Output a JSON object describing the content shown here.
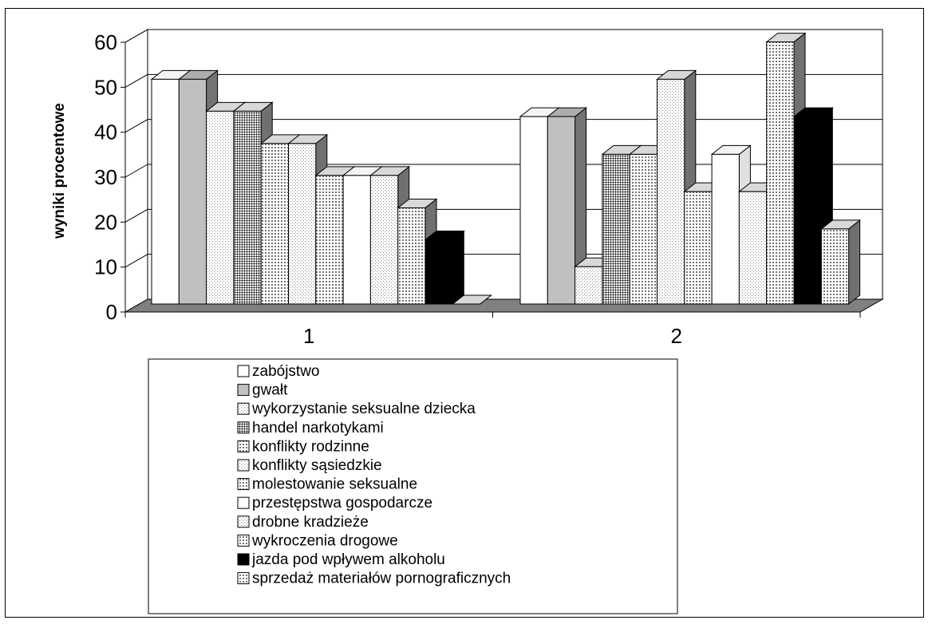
{
  "chart_data": {
    "type": "bar",
    "style": "3d-clustered-column",
    "categories": [
      "1",
      "2"
    ],
    "ylabel": "wyniki procentowe",
    "xlabel": "",
    "title": "",
    "ylim": [
      0,
      60
    ],
    "yticks": [
      "0",
      "10",
      "20",
      "30",
      "40",
      "50",
      "60"
    ],
    "grid": true,
    "legend_position": "bottom",
    "series": [
      {
        "name": "zabójstwo",
        "values": [
          50,
          41.7
        ],
        "color": "#ffffff",
        "pattern": "none"
      },
      {
        "name": "gwałt",
        "values": [
          50,
          41.7
        ],
        "color": "#c0c0c0",
        "pattern": "none"
      },
      {
        "name": "wykorzystanie seksualne dziecka",
        "values": [
          42.9,
          8.3
        ],
        "color": "#f0f0f0",
        "pattern": "dots-light"
      },
      {
        "name": "handel narkotykami",
        "values": [
          42.9,
          33.3
        ],
        "color": "#c8c8c8",
        "pattern": "grid"
      },
      {
        "name": "konflikty rodzinne",
        "values": [
          35.7,
          33.3
        ],
        "color": "#c8c8c8",
        "pattern": "dots"
      },
      {
        "name": "konflikty sąsiedzkie",
        "values": [
          35.7,
          50
        ],
        "color": "#ebebeb",
        "pattern": "dots-light"
      },
      {
        "name": "molestowanie seksualne",
        "values": [
          28.6,
          25
        ],
        "color": "#dcdcdc",
        "pattern": "dots"
      },
      {
        "name": "przestępstwa gospodarcze",
        "values": [
          28.6,
          33.3
        ],
        "color": "#ffffff",
        "pattern": "none"
      },
      {
        "name": "drobne kradzieże",
        "values": [
          28.6,
          25
        ],
        "color": "#f2f2f2",
        "pattern": "dots-light"
      },
      {
        "name": "wykroczenia drogowe",
        "values": [
          21.4,
          58.3
        ],
        "color": "#a8a8a8",
        "pattern": "dots"
      },
      {
        "name": "jazda pod wpływem alkoholu",
        "values": [
          14.3,
          41.7
        ],
        "color": "#000000",
        "pattern": "none"
      },
      {
        "name": "sprzedaż materiałów pornograficznych",
        "values": [
          0,
          16.7
        ],
        "color": "#707070",
        "pattern": "dots"
      }
    ]
  }
}
